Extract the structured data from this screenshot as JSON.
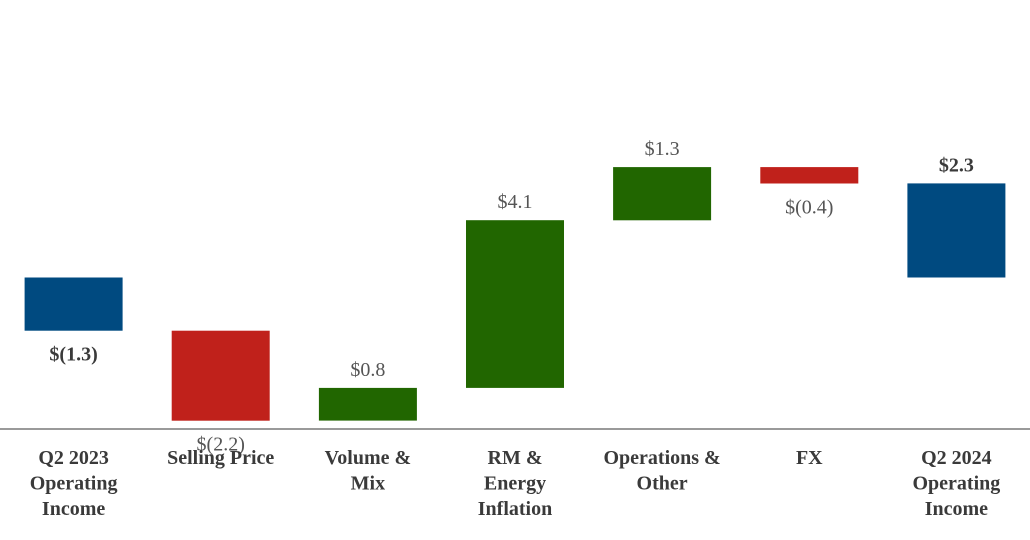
{
  "chart_data": {
    "type": "waterfall",
    "title": "",
    "xlabel": "",
    "ylabel": "",
    "unit": "$",
    "colors": {
      "total": "#004a80",
      "negative": "#c0211b",
      "positive": "#216600",
      "axis": "#9a9a9a"
    },
    "categories": [
      {
        "lines": [
          "Q2 2023",
          "Operating",
          "Income"
        ],
        "kind": "total",
        "value": -1.3,
        "label": "$(1.3)",
        "bold": true
      },
      {
        "lines": [
          "Selling Price"
        ],
        "kind": "negative",
        "value": -2.2,
        "label": "$(2.2)",
        "bold": false
      },
      {
        "lines": [
          "Volume &",
          "Mix"
        ],
        "kind": "positive",
        "value": 0.8,
        "label": "$0.8",
        "bold": false
      },
      {
        "lines": [
          "RM &",
          "Energy",
          "Inflation"
        ],
        "kind": "positive",
        "value": 4.1,
        "label": "$4.1",
        "bold": false
      },
      {
        "lines": [
          "Operations &",
          "Other"
        ],
        "kind": "positive",
        "value": 1.3,
        "label": "$1.3",
        "bold": false
      },
      {
        "lines": [
          "FX"
        ],
        "kind": "negative",
        "value": -0.4,
        "label": "$(0.4)",
        "bold": false
      },
      {
        "lines": [
          "Q2 2024",
          "Operating",
          "Income"
        ],
        "kind": "total",
        "value": 2.3,
        "label": "$2.3",
        "bold": true
      }
    ]
  }
}
